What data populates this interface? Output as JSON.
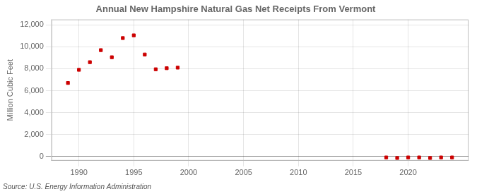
{
  "chart_data": {
    "type": "scatter",
    "title": "Annual New Hampshire Natural Gas Net Receipts From Vermont",
    "ylabel": "Million Cubic Feet",
    "annotations": [
      "Source: U.S. Energy Information Administration"
    ],
    "x": [
      1989,
      1990,
      1991,
      1992,
      1993,
      1994,
      1995,
      1996,
      1997,
      1998,
      1999,
      2018,
      2019,
      2020,
      2021,
      2022,
      2023,
      2024
    ],
    "values": [
      6700,
      7900,
      8600,
      9700,
      9050,
      10800,
      11050,
      9300,
      7950,
      8050,
      8100,
      -100,
      -150,
      -100,
      -100,
      -150,
      -100,
      -100
    ],
    "color": "#cc0000",
    "marker": "square",
    "xlim": [
      1987.5,
      2025.5
    ],
    "xticks": [
      1990,
      1995,
      2000,
      2005,
      2010,
      2015,
      2020
    ],
    "ylim": [
      -400,
      12500
    ],
    "yticks": [
      0,
      {
        "value": 2000,
        "label": "2,000"
      },
      {
        "value": 4000,
        "label": "4,000"
      },
      {
        "value": 6000,
        "label": "6,000"
      },
      {
        "value": 8000,
        "label": "8,000"
      },
      {
        "value": 10000,
        "label": "10,000"
      },
      {
        "value": 12000,
        "label": "12,000"
      }
    ],
    "grid": true
  }
}
